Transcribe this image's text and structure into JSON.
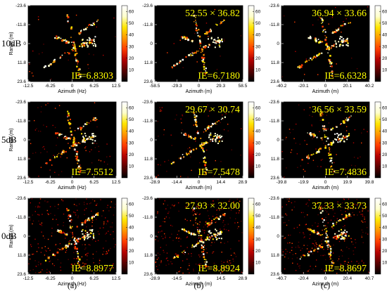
{
  "figure": {
    "row_labels": [
      "10dB",
      "5dB",
      "0dB"
    ],
    "col_labels": [
      "(a)",
      "(b)",
      "(c)"
    ],
    "colormap": [
      "#000000",
      "#5a0000",
      "#b40000",
      "#ff3c00",
      "#ff9600",
      "#ffe600",
      "#ffffcc",
      "#ffffff"
    ]
  },
  "chart_data": [
    {
      "type": "heatmap",
      "row": "10dB",
      "col": "(a)",
      "xlabel": "Azimuth (Hz)",
      "ylabel": "Range (m)",
      "xticks": [
        "-12.5",
        "-6.25",
        "0",
        "6.25",
        "12.5"
      ],
      "yticks": [
        "-23.6",
        "-11.8",
        "0",
        "11.8",
        "23.6"
      ],
      "xlim": [
        -12.5,
        12.5
      ],
      "ylim": [
        -23.6,
        23.6
      ],
      "colorbar_ticks": [
        "60",
        "50",
        "40",
        "30",
        "20",
        "10"
      ],
      "clim": [
        0,
        65
      ],
      "size_annotation": "",
      "ie_annotation": "IE=6.8303"
    },
    {
      "type": "heatmap",
      "row": "10dB",
      "col": "(b)",
      "xlabel": "Azimuth (m)",
      "ylabel": "",
      "xticks": [
        "-58.5",
        "-29.3",
        "0",
        "29.3",
        "58.5"
      ],
      "yticks": [
        "-23.6",
        "-11.8",
        "0",
        "11.8",
        "23.6"
      ],
      "xlim": [
        -58.5,
        58.5
      ],
      "ylim": [
        -23.6,
        23.6
      ],
      "colorbar_ticks": [
        "60",
        "50",
        "40",
        "30",
        "20",
        "10"
      ],
      "clim": [
        0,
        65
      ],
      "size_annotation": "52.55 × 36.82",
      "ie_annotation": "IE=6.7180"
    },
    {
      "type": "heatmap",
      "row": "10dB",
      "col": "(c)",
      "xlabel": "Azimuth (m)",
      "ylabel": "",
      "xticks": [
        "-40.2",
        "-20.1",
        "0",
        "20.1",
        "40.2"
      ],
      "yticks": [
        "-23.6",
        "-11.8",
        "0",
        "11.8",
        "23.6"
      ],
      "xlim": [
        -40.2,
        40.2
      ],
      "ylim": [
        -23.6,
        23.6
      ],
      "colorbar_ticks": [
        "60",
        "50",
        "40",
        "30",
        "20",
        "10"
      ],
      "clim": [
        0,
        65
      ],
      "size_annotation": "36.94 × 33.66",
      "ie_annotation": "IE=6.6328"
    },
    {
      "type": "heatmap",
      "row": "5dB",
      "col": "(a)",
      "xlabel": "Azimuth (Hz)",
      "ylabel": "Range (m)",
      "xticks": [
        "-12.5",
        "-6.25",
        "0",
        "6.25",
        "12.5"
      ],
      "yticks": [
        "-23.6",
        "-11.8",
        "0",
        "11.8",
        "23.6"
      ],
      "xlim": [
        -12.5,
        12.5
      ],
      "ylim": [
        -23.6,
        23.6
      ],
      "colorbar_ticks": [
        "60",
        "50",
        "40",
        "30",
        "20",
        "10"
      ],
      "clim": [
        0,
        65
      ],
      "size_annotation": "",
      "ie_annotation": "IE=7.5512"
    },
    {
      "type": "heatmap",
      "row": "5dB",
      "col": "(b)",
      "xlabel": "Azimuth (m)",
      "ylabel": "",
      "xticks": [
        "-28.9",
        "-14.4",
        "0",
        "14.4",
        "28.9"
      ],
      "yticks": [
        "-23.6",
        "-11.8",
        "0",
        "11.8",
        "23.6"
      ],
      "xlim": [
        -28.9,
        28.9
      ],
      "ylim": [
        -23.6,
        23.6
      ],
      "colorbar_ticks": [
        "60",
        "50",
        "40",
        "30",
        "20",
        "10"
      ],
      "clim": [
        0,
        65
      ],
      "size_annotation": "29.67 × 30.74",
      "ie_annotation": "IE=7.5478"
    },
    {
      "type": "heatmap",
      "row": "5dB",
      "col": "(c)",
      "xlabel": "Azimuth (m)",
      "ylabel": "",
      "xticks": [
        "-39.8",
        "-19.9",
        "0",
        "19.9",
        "39.8"
      ],
      "yticks": [
        "-23.6",
        "-11.8",
        "0",
        "11.8",
        "23.6"
      ],
      "xlim": [
        -39.8,
        39.8
      ],
      "ylim": [
        -23.6,
        23.6
      ],
      "colorbar_ticks": [
        "60",
        "50",
        "40",
        "30",
        "20",
        "10"
      ],
      "clim": [
        0,
        65
      ],
      "size_annotation": "36.56 × 33.59",
      "ie_annotation": "IE=7.4836"
    },
    {
      "type": "heatmap",
      "row": "0dB",
      "col": "(a)",
      "xlabel": "Azimuth (Hz)",
      "ylabel": "Range (m)",
      "xticks": [
        "-12.5",
        "-6.25",
        "0",
        "6.25",
        "12.5"
      ],
      "yticks": [
        "-23.6",
        "-11.8",
        "0",
        "11.8",
        "23.6"
      ],
      "xlim": [
        -12.5,
        12.5
      ],
      "ylim": [
        -23.6,
        23.6
      ],
      "colorbar_ticks": [
        "60",
        "50",
        "40",
        "30",
        "20",
        "10"
      ],
      "clim": [
        0,
        65
      ],
      "size_annotation": "",
      "ie_annotation": "IE=8.8977"
    },
    {
      "type": "heatmap",
      "row": "0dB",
      "col": "(b)",
      "xlabel": "Azimuth (m)",
      "ylabel": "",
      "xticks": [
        "-28.9",
        "-14.5",
        "0",
        "14.5",
        "28.9"
      ],
      "yticks": [
        "-23.6",
        "-11.8",
        "0",
        "11.8",
        "23.6"
      ],
      "xlim": [
        -28.9,
        28.9
      ],
      "ylim": [
        -23.6,
        23.6
      ],
      "colorbar_ticks": [
        "60",
        "50",
        "40",
        "30",
        "20",
        "10"
      ],
      "clim": [
        0,
        65
      ],
      "size_annotation": "27.93 × 32.00",
      "ie_annotation": "IE=8.8924"
    },
    {
      "type": "heatmap",
      "row": "0dB",
      "col": "(c)",
      "xlabel": "Azimuth (m)",
      "ylabel": "",
      "xticks": [
        "-40.7",
        "-20.4",
        "0",
        "20.4",
        "40.7"
      ],
      "yticks": [
        "-23.6",
        "-11.8",
        "0",
        "11.8",
        "23.6"
      ],
      "xlim": [
        -40.7,
        40.7
      ],
      "ylim": [
        -23.6,
        23.6
      ],
      "colorbar_ticks": [
        "60",
        "50",
        "40",
        "30",
        "20",
        "10"
      ],
      "clim": [
        0,
        65
      ],
      "size_annotation": "37.33 × 33.73",
      "ie_annotation": "IE=8.8697"
    }
  ]
}
